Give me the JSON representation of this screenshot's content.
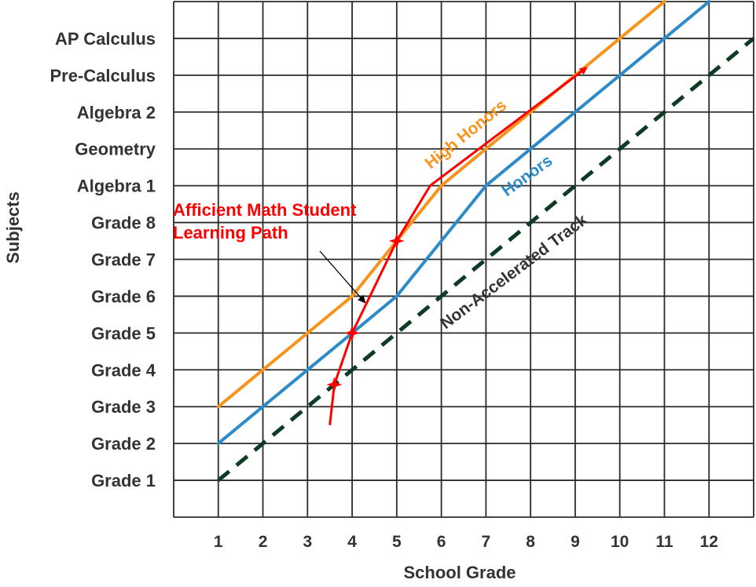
{
  "chart_data": {
    "type": "line",
    "xlabel": "School Grade",
    "ylabel": "Subjects",
    "x_ticks": [
      1,
      2,
      3,
      4,
      5,
      6,
      7,
      8,
      9,
      10,
      11,
      12
    ],
    "y_ticks": [
      "Grade 1",
      "Grade 2",
      "Grade 3",
      "Grade 4",
      "Grade 5",
      "Grade 6",
      "Grade 7",
      "Grade 8",
      "Algebra 1",
      "Geometry",
      "Algebra 2",
      "Pre-Calculus",
      "AP Calculus"
    ],
    "xlim": [
      0,
      13
    ],
    "ylim": [
      0,
      14
    ],
    "grid": true,
    "series": [
      {
        "name": "High Honors",
        "color": "#f7941d",
        "style": "solid",
        "points": [
          [
            1,
            3
          ],
          [
            2,
            4
          ],
          [
            3,
            5
          ],
          [
            4,
            6
          ],
          [
            5,
            7.5
          ],
          [
            6,
            9
          ],
          [
            7,
            10
          ],
          [
            8,
            11
          ],
          [
            9,
            12
          ],
          [
            10,
            13
          ],
          [
            11,
            14
          ]
        ]
      },
      {
        "name": "Honors",
        "color": "#2e8bc9",
        "style": "solid",
        "points": [
          [
            1,
            2
          ],
          [
            2,
            3
          ],
          [
            3,
            4
          ],
          [
            4,
            5
          ],
          [
            5,
            6
          ],
          [
            6,
            7.5
          ],
          [
            7,
            9
          ],
          [
            8,
            10
          ],
          [
            9,
            11
          ],
          [
            10,
            12
          ],
          [
            11,
            13
          ],
          [
            12,
            14
          ]
        ]
      },
      {
        "name": "Non-Accelerated Track",
        "color": "#0d3b24",
        "style": "dashed",
        "points": [
          [
            1,
            1
          ],
          [
            2,
            2
          ],
          [
            3,
            3
          ],
          [
            4,
            4
          ],
          [
            5,
            5
          ],
          [
            6,
            6
          ],
          [
            7,
            7
          ],
          [
            8,
            8
          ],
          [
            9,
            9
          ],
          [
            10,
            10
          ],
          [
            11,
            11
          ],
          [
            12,
            12
          ],
          [
            13,
            13
          ]
        ]
      },
      {
        "name": "Afficient Math Student Learning Path",
        "color": "#ff0000",
        "style": "arrow",
        "points": [
          [
            3.5,
            2.5
          ],
          [
            3.6,
            3.6
          ],
          [
            4,
            5
          ],
          [
            5,
            7.5
          ],
          [
            5.75,
            9
          ],
          [
            9.25,
            12.2
          ]
        ],
        "markers": [
          [
            3.6,
            3.6
          ],
          [
            4,
            5
          ],
          [
            5,
            7.5
          ]
        ]
      }
    ],
    "annotations": [
      "Afficient Math Student",
      "Learning Path"
    ]
  }
}
